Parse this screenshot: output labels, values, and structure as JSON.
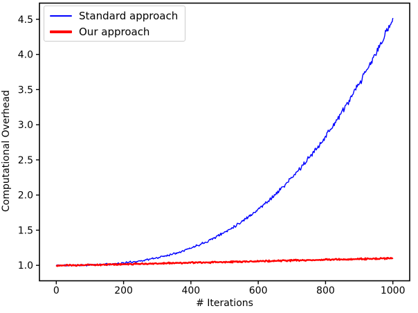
{
  "chart_data": {
    "type": "line",
    "title": "",
    "xlabel": "# Iterations",
    "ylabel": "Computational Overhead",
    "xlim": [
      -50,
      1050
    ],
    "ylim": [
      0.78,
      4.73
    ],
    "x_ticks": [
      0,
      200,
      400,
      600,
      800,
      1000
    ],
    "y_ticks": [
      1.0,
      1.5,
      2.0,
      2.5,
      3.0,
      3.5,
      4.0,
      4.5
    ],
    "grid": false,
    "legend_position": "upper-left",
    "x_start": 0,
    "x_step": 50,
    "series": [
      {
        "name": "Standard approach",
        "color": "#0000ff",
        "linewidth": 1.4,
        "values": [
          1.0,
          1.001,
          1.004,
          1.014,
          1.033,
          1.063,
          1.107,
          1.167,
          1.246,
          1.345,
          1.469,
          1.619,
          1.796,
          2.003,
          2.244,
          2.52,
          2.833,
          3.185,
          3.578,
          4.016,
          4.5
        ],
        "noise": {
          "mode": "proportional",
          "amplitude": 0.016,
          "seed": 11
        }
      },
      {
        "name": "Our approach",
        "color": "#ff0000",
        "linewidth": 2.4,
        "values": [
          0.995,
          1.0,
          1.006,
          1.011,
          1.016,
          1.021,
          1.027,
          1.032,
          1.037,
          1.042,
          1.048,
          1.053,
          1.058,
          1.063,
          1.069,
          1.074,
          1.079,
          1.084,
          1.09,
          1.095,
          1.1
        ],
        "noise": {
          "mode": "absolute",
          "amplitude": 0.013,
          "seed": 23
        }
      }
    ]
  }
}
